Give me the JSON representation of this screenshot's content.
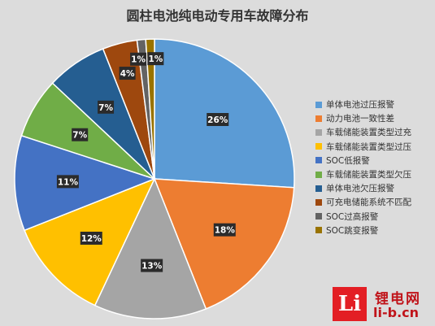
{
  "chart_data": {
    "type": "pie",
    "title": "圆柱电池纯电动专用车故障分布",
    "slices": [
      {
        "name": "单体电池过压报警",
        "value": 26,
        "label": "26%",
        "color": "#5b9bd5"
      },
      {
        "name": "动力电池一致性差",
        "value": 18,
        "label": "18%",
        "color": "#ed7d31"
      },
      {
        "name": "车载储能装置类型过充",
        "value": 13,
        "label": "13%",
        "color": "#a5a5a5"
      },
      {
        "name": "车载储能装置类型过压",
        "value": 12,
        "label": "12%",
        "color": "#ffc000"
      },
      {
        "name": "SOC低报警",
        "value": 11,
        "label": "11%",
        "color": "#4472c4"
      },
      {
        "name": "车载储能装置类型欠压",
        "value": 7,
        "label": "7%",
        "color": "#70ad47"
      },
      {
        "name": "单体电池欠压报警",
        "value": 7,
        "label": "7%",
        "color": "#255e91"
      },
      {
        "name": "可充电储能系统不匹配",
        "value": 4,
        "label": "4%",
        "color": "#9e480e"
      },
      {
        "name": "SOC过高报警",
        "value": 1,
        "label": "1%",
        "color": "#636363"
      },
      {
        "name": "SOC跳变报警",
        "value": 1,
        "label": "1%",
        "color": "#997300"
      }
    ],
    "legend_position": "right"
  },
  "watermark": {
    "box_text": "Li",
    "cn_text": "锂电网",
    "url_text": "li-b.cn"
  }
}
